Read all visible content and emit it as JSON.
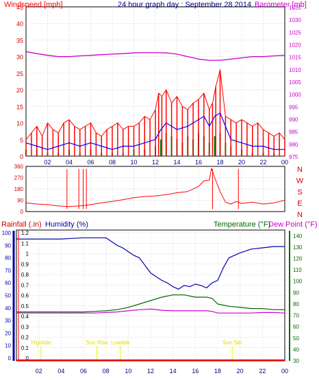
{
  "chart_title": "24 hour graph day : September 28 2014",
  "colors": {
    "wind": "#ff0000",
    "gust": "#ff0000",
    "avg": "#0000ff",
    "dir": "#008000",
    "barometer": "#cc00cc",
    "humidity": "#0000aa",
    "temperature": "#006600",
    "dewpoint": "#cc00cc",
    "rain": "#ff0000",
    "tide": "#eeee00",
    "grid": "#aaaaaa",
    "frame": "#000000"
  },
  "chart_data": [
    {
      "type": "line",
      "name": "wind-barometer",
      "title": "24 hour graph day : September 28 2014",
      "ylabel_left": "Windspeed [mph]",
      "ylabel_right": "Barometer [mb]",
      "ylim_left": [
        0,
        45
      ],
      "yticks_left": [
        "0",
        "5",
        "10",
        "15",
        "20",
        "25",
        "30",
        "35",
        "40",
        "45"
      ],
      "ylim_right": [
        975,
        1035
      ],
      "yticks_right": [
        "975",
        "980",
        "985",
        "990",
        "995",
        "1000",
        "1005",
        "1010",
        "1015",
        "1020",
        "1025",
        "1030",
        "1035"
      ],
      "xlim": [
        0,
        24
      ],
      "xticks": [
        "02",
        "04",
        "06",
        "08",
        "10",
        "12",
        "14",
        "16",
        "18",
        "20",
        "22",
        "00"
      ],
      "grid": true,
      "series": [
        {
          "key": "gust",
          "x": [
            0,
            0.5,
            1,
            1.5,
            2,
            2.5,
            3,
            3.5,
            4,
            4.5,
            5,
            5.5,
            6,
            6.5,
            7,
            7.5,
            8,
            8.5,
            9,
            9.5,
            10,
            10.5,
            11,
            11.5,
            12,
            12.3,
            12.6,
            13,
            13.5,
            14,
            14.5,
            15,
            15.5,
            16,
            16.5,
            17,
            17.3,
            17.6,
            18,
            18.5,
            19,
            19.5,
            20,
            20.5,
            21,
            21.5,
            22,
            22.5,
            23,
            23.5,
            24
          ],
          "y": [
            5,
            7,
            9,
            6,
            10,
            8,
            7,
            10,
            11,
            9,
            8,
            9,
            10,
            7,
            6,
            8,
            9,
            10,
            8,
            9,
            9,
            10,
            12,
            11,
            14,
            19,
            18,
            20,
            16,
            18,
            15,
            14,
            16,
            17,
            19,
            14,
            16,
            21,
            26,
            12,
            11,
            10,
            11,
            10,
            9,
            10,
            8,
            7,
            6,
            7,
            5
          ]
        },
        {
          "key": "avg",
          "x": [
            0,
            1,
            2,
            3,
            4,
            5,
            6,
            7,
            8,
            9,
            10,
            11,
            12,
            12.5,
            13,
            13.5,
            14,
            15,
            15.5,
            16,
            16.5,
            17,
            17.5,
            18,
            18.5,
            19,
            20,
            21,
            22,
            23,
            24
          ],
          "y": [
            4,
            3,
            2,
            3,
            4,
            3,
            4,
            3,
            2,
            3,
            3,
            4,
            5,
            8,
            10,
            9,
            8,
            9,
            10,
            11,
            12,
            9,
            12,
            13,
            9,
            5,
            4,
            3,
            3,
            2,
            2
          ]
        },
        {
          "key": "dir",
          "x": [
            0,
            1,
            2,
            3,
            4,
            5,
            6,
            7,
            8,
            9,
            10,
            11,
            12,
            12.5,
            13,
            13.5,
            14,
            14.5,
            15,
            15.5,
            16,
            16.5,
            17,
            17.5,
            18,
            18.5,
            19,
            20,
            21,
            22,
            23,
            24
          ],
          "y": [
            2,
            2,
            1,
            1,
            2,
            1,
            2,
            1,
            1,
            1,
            2,
            2,
            3,
            5,
            7,
            6,
            5,
            4,
            6,
            5,
            7,
            6,
            4,
            6,
            7,
            4,
            3,
            2,
            1,
            1,
            1,
            0
          ]
        },
        {
          "key": "barometer",
          "axis": "right",
          "x": [
            0,
            1,
            2,
            3,
            4,
            5,
            6,
            7,
            8,
            9,
            10,
            11,
            12,
            13,
            14,
            15,
            16,
            17,
            18,
            19,
            20,
            21,
            22,
            23,
            24
          ],
          "y": [
            1017,
            1016.2,
            1015.5,
            1015,
            1015,
            1015.3,
            1015.5,
            1015.8,
            1016,
            1016.2,
            1016.5,
            1016.6,
            1016.6,
            1016.5,
            1016,
            1015,
            1014,
            1013.5,
            1013.5,
            1014,
            1014.5,
            1015,
            1015,
            1015.3,
            1015.5
          ]
        }
      ]
    },
    {
      "type": "line",
      "name": "wind-direction",
      "ylim": [
        0,
        360
      ],
      "yticks": [
        "0",
        "90",
        "180",
        "270",
        "360"
      ],
      "compass": [
        "N",
        "W",
        "S",
        "E",
        "N"
      ],
      "xlim": [
        0,
        24
      ],
      "grid": true,
      "series": [
        {
          "key": "direction",
          "x": [
            0,
            1,
            2,
            3,
            4,
            5,
            6,
            7,
            8,
            9,
            10,
            11,
            12,
            13,
            14,
            15,
            16,
            16.5,
            17,
            17.2,
            17.5,
            18,
            18.5,
            19,
            19.5,
            20,
            21,
            22,
            23,
            24
          ],
          "y": [
            70,
            60,
            55,
            45,
            40,
            45,
            55,
            70,
            80,
            95,
            110,
            120,
            125,
            135,
            150,
            160,
            200,
            245,
            250,
            345,
            270,
            160,
            75,
            60,
            80,
            65,
            75,
            60,
            70,
            90
          ]
        }
      ]
    },
    {
      "type": "line",
      "name": "rain-humidity-temperature",
      "ylabel_left_1": "Rainfall (.in)",
      "ylabel_left_2": "Humidity (%)",
      "ylabel_right_1": "Temperature (°F)",
      "ylabel_right_2": "Dew Point (°F)",
      "yticks_rain": [
        "0",
        "0.1",
        "0.2",
        "0.3",
        "0.4",
        "0.5",
        "0.6",
        "0.7",
        "0.8",
        "0.9",
        "1",
        "1.1",
        "1.2"
      ],
      "yticks_humidity": [
        "0",
        "10",
        "20",
        "30",
        "40",
        "50",
        "60",
        "70",
        "80",
        "90",
        "100"
      ],
      "yticks_temperature": [
        "30",
        "40",
        "50",
        "60",
        "70",
        "80",
        "90",
        "100",
        "110",
        "120",
        "130",
        "140"
      ],
      "ylim_humidity": [
        0,
        100
      ],
      "ylim_temperature": [
        30,
        145
      ],
      "xlim": [
        0,
        24
      ],
      "grid": true,
      "events": [
        {
          "label": "Hightide",
          "x": 2.2
        },
        {
          "label": "Sun Rise",
          "x": 7.2
        },
        {
          "label": "Lowtide",
          "x": 9.3
        },
        {
          "label": "Sun Set",
          "x": 19.3
        }
      ],
      "series": [
        {
          "key": "humidity",
          "x": [
            0,
            1,
            2,
            3,
            4,
            5,
            6,
            7,
            8,
            8.5,
            9,
            9.5,
            10,
            10.5,
            11,
            11.5,
            12,
            12.5,
            13,
            13.5,
            14,
            14.5,
            15,
            15.5,
            16,
            16.5,
            17,
            17.5,
            18,
            18.5,
            19,
            19.5,
            20,
            21,
            22,
            23,
            24
          ],
          "y": [
            95,
            95,
            95,
            95,
            95,
            95.5,
            96,
            96,
            96,
            93,
            90,
            88,
            85,
            82,
            80,
            74,
            68,
            65,
            62,
            60,
            57,
            55,
            58,
            57,
            59,
            58,
            56,
            60,
            62,
            72,
            80,
            82,
            84,
            87,
            88,
            89,
            89
          ]
        },
        {
          "key": "temperature",
          "axis": "temperature",
          "x": [
            0,
            1,
            2,
            3,
            4,
            5,
            6,
            7,
            8,
            9,
            10,
            11,
            12,
            13,
            14,
            15,
            16,
            17,
            17.5,
            18,
            19,
            20,
            21,
            22,
            23,
            24
          ],
          "y": [
            73,
            73,
            73,
            73,
            73,
            73,
            73,
            73.5,
            74,
            75,
            77,
            80,
            83,
            86,
            88,
            88,
            86,
            86,
            85,
            80,
            78,
            77,
            76,
            76,
            75,
            75
          ]
        },
        {
          "key": "dewpoint",
          "axis": "temperature",
          "x": [
            0,
            1,
            2,
            3,
            4,
            5,
            6,
            7,
            8,
            9,
            10,
            11,
            12,
            13,
            14,
            15,
            16,
            17,
            17.5,
            18,
            19,
            20,
            21,
            22,
            23,
            24
          ],
          "y": [
            72,
            72,
            72,
            72,
            72,
            72,
            72,
            72,
            72.5,
            73,
            74,
            75,
            75.5,
            74.5,
            74,
            74,
            74,
            74,
            73.5,
            72,
            72,
            72,
            72,
            72.5,
            72.5,
            72
          ]
        },
        {
          "key": "rain",
          "x": [
            0,
            24
          ],
          "y": [
            0,
            0
          ]
        }
      ]
    }
  ]
}
